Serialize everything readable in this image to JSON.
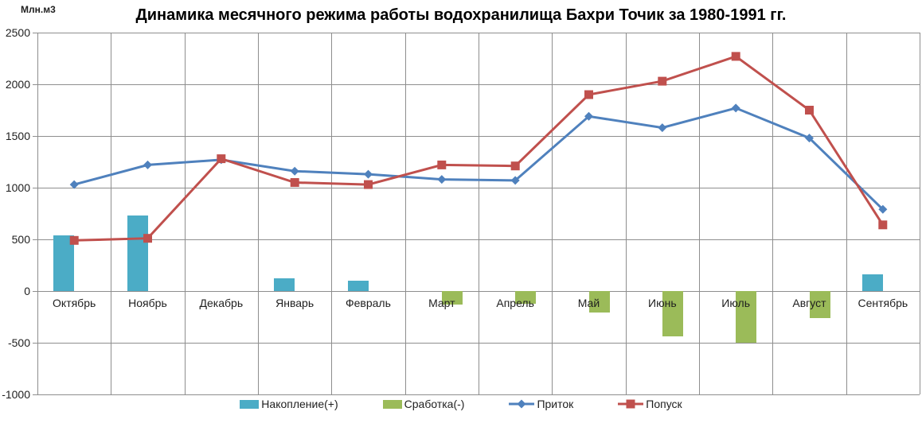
{
  "header": {
    "title": "Динамика месячного режима работы водохранилища Бахри Точик за 1980-1991 гг.",
    "y_axis_unit": "Млн.м3"
  },
  "chart_data": {
    "type": "combo",
    "title": "Динамика месячного режима работы водохранилища Бахри Точик за 1980-1991 гг.",
    "xlabel": "",
    "ylabel": "Млн.м3",
    "categories": [
      "Октябрь",
      "Ноябрь",
      "Декабрь",
      "Январь",
      "Февраль",
      "Март",
      "Апрель",
      "Май",
      "Июнь",
      "Июль",
      "Август",
      "Сентябрь"
    ],
    "series": [
      {
        "name": "Накопление(+)",
        "key": "nakoplenie",
        "type": "bar",
        "color": "#4BACC6",
        "values": [
          540,
          730,
          0,
          120,
          100,
          0,
          0,
          0,
          0,
          0,
          0,
          160
        ]
      },
      {
        "name": "Сработка(-)",
        "key": "srabotka",
        "type": "bar",
        "color": "#9BBB59",
        "values": [
          0,
          0,
          0,
          0,
          0,
          -130,
          -120,
          -210,
          -440,
          -500,
          -260,
          0
        ]
      },
      {
        "name": "Приток",
        "key": "pritok",
        "type": "line",
        "marker": "diamond",
        "color": "#4F81BD",
        "values": [
          1030,
          1220,
          1270,
          1160,
          1130,
          1080,
          1070,
          1690,
          1580,
          1770,
          1480,
          790
        ]
      },
      {
        "name": "Попуск",
        "key": "popusk",
        "type": "line",
        "marker": "square",
        "color": "#C0504D",
        "values": [
          490,
          510,
          1280,
          1050,
          1030,
          1220,
          1210,
          1900,
          2030,
          2270,
          1750,
          640
        ]
      }
    ],
    "y_ticks": [
      2500,
      2000,
      1500,
      1000,
      500,
      0,
      -500,
      -1000
    ],
    "ylim": [
      -1000,
      2500
    ],
    "grid": true,
    "gridline_color": "#8e8e8e",
    "legend_position": "bottom"
  }
}
